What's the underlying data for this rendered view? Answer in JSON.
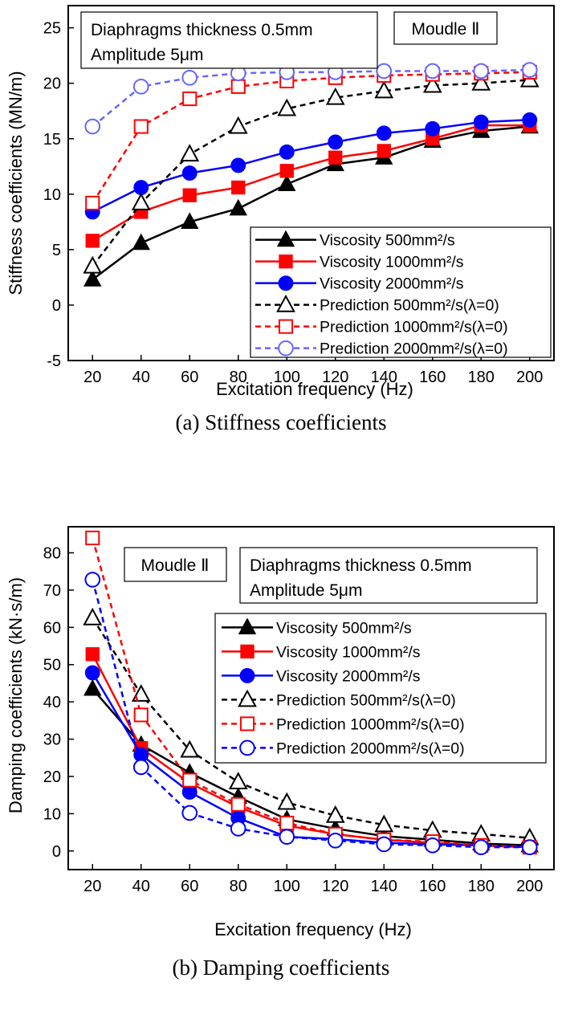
{
  "chart_data": [
    {
      "type": "line",
      "caption": "(a) Stiffness coefficients",
      "xlabel": "Excitation frequency (Hz)",
      "ylabel": "Stiffness coefficients (MN/m)",
      "xlim": [
        10,
        210
      ],
      "ylim": [
        -5,
        27
      ],
      "x_ticks": [
        20,
        40,
        60,
        80,
        100,
        120,
        140,
        160,
        180,
        200
      ],
      "y_ticks": [
        -5,
        0,
        5,
        10,
        15,
        20,
        25
      ],
      "annotations": [
        "Diaphragms thickness 0.5mm",
        "Amplitude 5μm",
        "Moudle Ⅱ"
      ],
      "legend_position": "lower-right",
      "x": [
        20,
        40,
        60,
        80,
        100,
        120,
        140,
        160,
        180,
        200
      ],
      "series": [
        {
          "name": "Viscosity 500mm²/s",
          "color": "#000000",
          "marker": "triangle",
          "filled": true,
          "dash": false,
          "values": [
            2.3,
            5.6,
            7.5,
            8.7,
            10.9,
            12.7,
            13.3,
            14.8,
            15.7,
            16.1
          ]
        },
        {
          "name": "Viscosity 1000mm²/s",
          "color": "#ff0000",
          "marker": "square",
          "filled": true,
          "dash": false,
          "values": [
            5.8,
            8.4,
            9.9,
            10.6,
            12.1,
            13.3,
            13.9,
            15.0,
            16.2,
            16.2
          ]
        },
        {
          "name": "Viscosity 2000mm²/s",
          "color": "#0000ff",
          "marker": "circle",
          "filled": true,
          "dash": false,
          "values": [
            8.4,
            10.6,
            11.9,
            12.6,
            13.8,
            14.7,
            15.5,
            15.9,
            16.5,
            16.7
          ]
        },
        {
          "name": "Prediction 500mm²/s(λ=0)",
          "color": "#000000",
          "marker": "triangle",
          "filled": false,
          "dash": true,
          "values": [
            3.5,
            9.2,
            13.6,
            16.1,
            17.7,
            18.7,
            19.3,
            19.8,
            20.0,
            20.3
          ]
        },
        {
          "name": "Prediction 1000mm²/s(λ=0)",
          "color": "#ff0000",
          "marker": "square",
          "filled": false,
          "dash": true,
          "values": [
            9.2,
            16.1,
            18.6,
            19.7,
            20.2,
            20.5,
            20.7,
            20.8,
            20.9,
            21.0
          ]
        },
        {
          "name": "Prediction 2000mm²/s(λ=0)",
          "color": "#6666ff",
          "marker": "circle",
          "filled": false,
          "dash": true,
          "values": [
            16.1,
            19.7,
            20.5,
            20.9,
            21.0,
            21.0,
            21.1,
            21.1,
            21.1,
            21.2
          ]
        }
      ]
    },
    {
      "type": "line",
      "caption": "(b) Damping coefficients",
      "xlabel": "Excitation frequency (Hz)",
      "ylabel": "Damping coefficients (kN·s/m)",
      "xlim": [
        10,
        210
      ],
      "ylim": [
        -5,
        87
      ],
      "x_ticks": [
        20,
        40,
        60,
        80,
        100,
        120,
        140,
        160,
        180,
        200
      ],
      "y_ticks": [
        0,
        10,
        20,
        30,
        40,
        50,
        60,
        70,
        80
      ],
      "annotations": [
        "Moudle Ⅱ",
        "Diaphragms thickness 0.5mm",
        "Amplitude 5μm"
      ],
      "legend_position": "upper-right",
      "x": [
        20,
        40,
        60,
        80,
        100,
        120,
        140,
        160,
        180,
        200
      ],
      "series": [
        {
          "name": "Viscosity 500mm²/s",
          "color": "#000000",
          "marker": "triangle",
          "filled": true,
          "dash": false,
          "values": [
            43.5,
            28.5,
            21.0,
            14.5,
            8.5,
            6.0,
            4.0,
            3.0,
            2.0,
            1.5
          ]
        },
        {
          "name": "Viscosity 1000mm²/s",
          "color": "#ff0000",
          "marker": "square",
          "filled": true,
          "dash": false,
          "values": [
            52.8,
            27.6,
            18.2,
            11.8,
            6.8,
            4.5,
            3.0,
            2.2,
            1.5,
            1.0
          ]
        },
        {
          "name": "Viscosity 2000mm²/s",
          "color": "#0000ff",
          "marker": "circle",
          "filled": true,
          "dash": false,
          "values": [
            47.8,
            25.8,
            15.8,
            8.8,
            3.8,
            3.2,
            2.2,
            1.8,
            1.5,
            1.0
          ]
        },
        {
          "name": "Prediction 500mm²/s(λ=0)",
          "color": "#000000",
          "marker": "triangle",
          "filled": false,
          "dash": true,
          "values": [
            62.5,
            42.0,
            27.0,
            18.5,
            13.0,
            9.5,
            7.0,
            5.5,
            4.5,
            3.5
          ]
        },
        {
          "name": "Prediction 1000mm²/s(λ=0)",
          "color": "#ff0000",
          "marker": "square",
          "filled": false,
          "dash": true,
          "values": [
            84.0,
            36.5,
            19.0,
            12.5,
            7.5,
            4.5,
            3.0,
            2.5,
            1.5,
            1.0
          ]
        },
        {
          "name": "Prediction 2000mm²/s(λ=0)",
          "color": "#0000ff",
          "marker": "circle",
          "filled": false,
          "dash": true,
          "values": [
            72.8,
            22.5,
            10.2,
            6.0,
            3.8,
            2.8,
            1.8,
            1.5,
            1.0,
            1.0
          ]
        }
      ]
    }
  ]
}
